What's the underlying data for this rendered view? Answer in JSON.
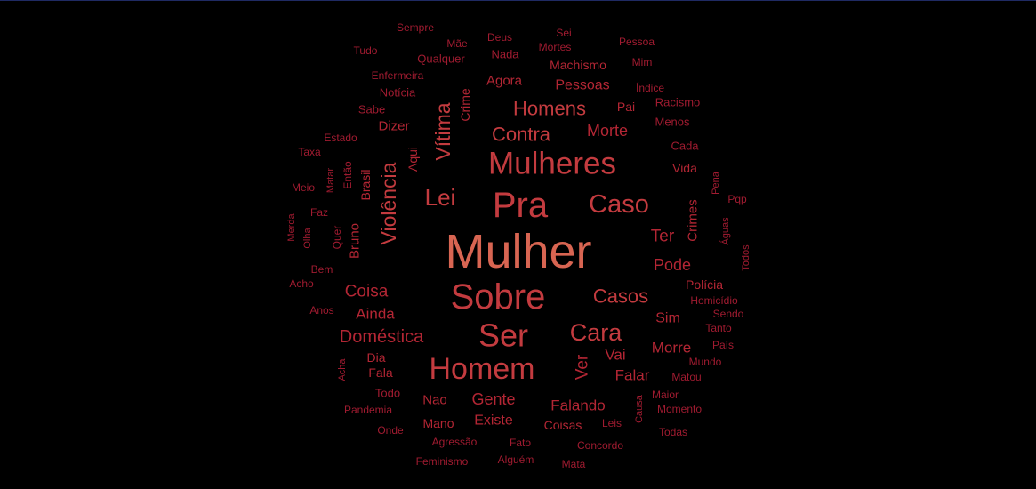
{
  "palette": {
    "background": "#000000",
    "top_border": "#1f2a63",
    "dark": "#a01b30",
    "mid": "#b32634",
    "bright": "#c33b3f",
    "highlight": "#d86552"
  },
  "words": [
    {
      "text": "Mulher",
      "weight": 100,
      "tone": "highlight"
    },
    {
      "text": "Sobre",
      "weight": 62,
      "tone": "bright"
    },
    {
      "text": "Pra",
      "weight": 58,
      "tone": "bright"
    },
    {
      "text": "Ser",
      "weight": 56,
      "tone": "bright"
    },
    {
      "text": "Mulheres",
      "weight": 52,
      "tone": "bright"
    },
    {
      "text": "Homem",
      "weight": 50,
      "tone": "bright"
    },
    {
      "text": "Caso",
      "weight": 44,
      "tone": "bright"
    },
    {
      "text": "Cara",
      "weight": 40,
      "tone": "bright"
    },
    {
      "text": "Lei",
      "weight": 38,
      "tone": "bright"
    },
    {
      "text": "Vítima",
      "weight": 36,
      "tone": "bright"
    },
    {
      "text": "Violência",
      "weight": 36,
      "tone": "bright"
    },
    {
      "text": "Contra",
      "weight": 34,
      "tone": "bright"
    },
    {
      "text": "Casos",
      "weight": 34,
      "tone": "bright"
    },
    {
      "text": "Homens",
      "weight": 33,
      "tone": "bright"
    },
    {
      "text": "Doméstica",
      "weight": 30,
      "tone": "mid"
    },
    {
      "text": "Morte",
      "weight": 30,
      "tone": "mid"
    },
    {
      "text": "Coisa",
      "weight": 29,
      "tone": "mid"
    },
    {
      "text": "Ter",
      "weight": 29,
      "tone": "mid"
    },
    {
      "text": "Pode",
      "weight": 28,
      "tone": "mid"
    },
    {
      "text": "Ver",
      "weight": 28,
      "tone": "mid"
    },
    {
      "text": "Gente",
      "weight": 27,
      "tone": "mid"
    },
    {
      "text": "Falando",
      "weight": 27,
      "tone": "mid"
    },
    {
      "text": "Ainda",
      "weight": 26,
      "tone": "mid"
    },
    {
      "text": "Vai",
      "weight": 26,
      "tone": "mid"
    },
    {
      "text": "Morre",
      "weight": 26,
      "tone": "mid"
    },
    {
      "text": "Falar",
      "weight": 26,
      "tone": "mid"
    },
    {
      "text": "Pessoas",
      "weight": 25,
      "tone": "mid"
    },
    {
      "text": "Sim",
      "weight": 25,
      "tone": "mid"
    },
    {
      "text": "Existe",
      "weight": 24,
      "tone": "mid"
    },
    {
      "text": "Crimes",
      "weight": 23,
      "tone": "mid"
    },
    {
      "text": "Agora",
      "weight": 23,
      "tone": "mid"
    },
    {
      "text": "Dizer",
      "weight": 23,
      "tone": "mid"
    },
    {
      "text": "Bruno",
      "weight": 22,
      "tone": "mid"
    },
    {
      "text": "Brasil",
      "weight": 22,
      "tone": "mid"
    },
    {
      "text": "Aqui",
      "weight": 21,
      "tone": "mid"
    },
    {
      "text": "Crime",
      "weight": 21,
      "tone": "mid"
    },
    {
      "text": "Polícia",
      "weight": 21,
      "tone": "mid"
    },
    {
      "text": "Vida",
      "weight": 21,
      "tone": "mid"
    },
    {
      "text": "Coisas",
      "weight": 21,
      "tone": "mid"
    },
    {
      "text": "Nao",
      "weight": 21,
      "tone": "mid"
    },
    {
      "text": "Dia",
      "weight": 20,
      "tone": "mid"
    },
    {
      "text": "Fala",
      "weight": 20,
      "tone": "mid"
    },
    {
      "text": "Machismo",
      "weight": 20,
      "tone": "mid"
    },
    {
      "text": "Pai",
      "weight": 20,
      "tone": "mid"
    },
    {
      "text": "Mano",
      "weight": 20,
      "tone": "mid"
    },
    {
      "text": "Todo",
      "weight": 19,
      "tone": "dark"
    },
    {
      "text": "Notícia",
      "weight": 19,
      "tone": "dark"
    },
    {
      "text": "Sabe",
      "weight": 19,
      "tone": "dark"
    },
    {
      "text": "Qualquer",
      "weight": 19,
      "tone": "dark"
    },
    {
      "text": "Nada",
      "weight": 19,
      "tone": "dark"
    },
    {
      "text": "Racismo",
      "weight": 19,
      "tone": "dark"
    },
    {
      "text": "Menos",
      "weight": 19,
      "tone": "dark"
    },
    {
      "text": "Cada",
      "weight": 19,
      "tone": "dark"
    },
    {
      "text": "Tanto",
      "weight": 18,
      "tone": "dark"
    },
    {
      "text": "Leis",
      "weight": 18,
      "tone": "dark"
    },
    {
      "text": "Concordo",
      "weight": 18,
      "tone": "dark"
    },
    {
      "text": "Pandemia",
      "weight": 18,
      "tone": "dark"
    },
    {
      "text": "Agressão",
      "weight": 18,
      "tone": "dark"
    },
    {
      "text": "Fato",
      "weight": 18,
      "tone": "dark"
    },
    {
      "text": "Alguém",
      "weight": 18,
      "tone": "dark"
    },
    {
      "text": "Estado",
      "weight": 17,
      "tone": "dark"
    },
    {
      "text": "Tudo",
      "weight": 17,
      "tone": "dark"
    },
    {
      "text": "Enfermeira",
      "weight": 17,
      "tone": "dark"
    },
    {
      "text": "Sempre",
      "weight": 17,
      "tone": "dark"
    },
    {
      "text": "Mãe",
      "weight": 17,
      "tone": "dark"
    },
    {
      "text": "Deus",
      "weight": 17,
      "tone": "dark"
    },
    {
      "text": "Sei",
      "weight": 17,
      "tone": "dark"
    },
    {
      "text": "Mortes",
      "weight": 17,
      "tone": "dark"
    },
    {
      "text": "Pessoa",
      "weight": 17,
      "tone": "dark"
    },
    {
      "text": "Mim",
      "weight": 17,
      "tone": "dark"
    },
    {
      "text": "Índice",
      "weight": 17,
      "tone": "dark"
    },
    {
      "text": "Taxa",
      "weight": 17,
      "tone": "dark"
    },
    {
      "text": "Meio",
      "weight": 17,
      "tone": "dark"
    },
    {
      "text": "Faz",
      "weight": 17,
      "tone": "dark"
    },
    {
      "text": "Bem",
      "weight": 17,
      "tone": "dark"
    },
    {
      "text": "Acho",
      "weight": 17,
      "tone": "dark"
    },
    {
      "text": "Anos",
      "weight": 17,
      "tone": "dark"
    },
    {
      "text": "Onde",
      "weight": 17,
      "tone": "dark"
    },
    {
      "text": "Feminismo",
      "weight": 17,
      "tone": "dark"
    },
    {
      "text": "Mata",
      "weight": 17,
      "tone": "dark"
    },
    {
      "text": "Todas",
      "weight": 17,
      "tone": "dark"
    },
    {
      "text": "Momento",
      "weight": 17,
      "tone": "dark"
    },
    {
      "text": "Maior",
      "weight": 17,
      "tone": "dark"
    },
    {
      "text": "Matou",
      "weight": 17,
      "tone": "dark"
    },
    {
      "text": "Mundo",
      "weight": 17,
      "tone": "dark"
    },
    {
      "text": "País",
      "weight": 17,
      "tone": "dark"
    },
    {
      "text": "Sendo",
      "weight": 17,
      "tone": "dark"
    },
    {
      "text": "Homicídio",
      "weight": 17,
      "tone": "dark"
    },
    {
      "text": "Pqp",
      "weight": 17,
      "tone": "dark"
    },
    {
      "text": "Matar",
      "weight": 16,
      "tone": "dark"
    },
    {
      "text": "Então",
      "weight": 16,
      "tone": "dark"
    },
    {
      "text": "Merda",
      "weight": 16,
      "tone": "dark"
    },
    {
      "text": "Olha",
      "weight": 16,
      "tone": "dark"
    },
    {
      "text": "Quer",
      "weight": 16,
      "tone": "dark"
    },
    {
      "text": "Acha",
      "weight": 16,
      "tone": "dark"
    },
    {
      "text": "Causa",
      "weight": 16,
      "tone": "dark"
    },
    {
      "text": "Pena",
      "weight": 16,
      "tone": "dark"
    },
    {
      "text": "Águas",
      "weight": 16,
      "tone": "dark"
    },
    {
      "text": "Todos",
      "weight": 16,
      "tone": "dark"
    }
  ]
}
